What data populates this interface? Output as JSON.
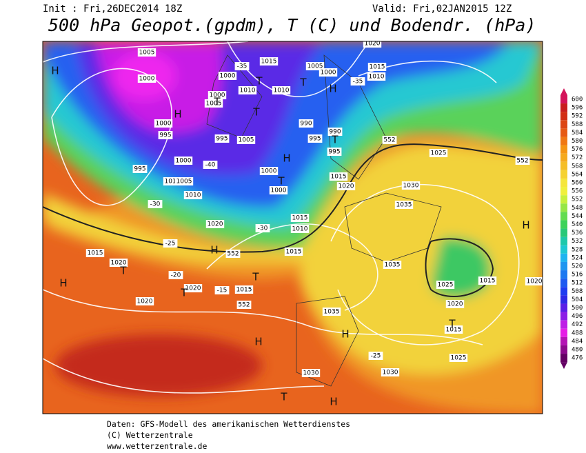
{
  "header": {
    "init": "Init : Fri,26DEC2014 18Z",
    "valid": "Valid: Fri,02JAN2015 12Z",
    "title": "500 hPa Geopot.(gpdm), T (C) und Bodendr. (hPa)"
  },
  "legend": {
    "labels": [
      600,
      596,
      592,
      588,
      584,
      580,
      576,
      572,
      568,
      564,
      560,
      556,
      552,
      548,
      544,
      540,
      536,
      532,
      528,
      524,
      520,
      516,
      512,
      508,
      504,
      500,
      496,
      492,
      488,
      484,
      480,
      476
    ]
  },
  "map": {
    "labels": [
      "1005",
      "1000",
      "1000",
      "995",
      "995",
      "1000",
      "1005",
      "1010",
      "1000",
      "1010",
      "1015",
      "1005",
      "1000",
      "1010",
      "990",
      "995",
      "990",
      "995",
      "1005",
      "995",
      "1000",
      "1000",
      "1005",
      "1010",
      "1020",
      "1015",
      "1020",
      "1015",
      "1010",
      "1015",
      "1020",
      "1025",
      "1030",
      "1035",
      "1035",
      "1025",
      "1020",
      "1015",
      "1020",
      "1015",
      "1035",
      "1030",
      "1030",
      "1025",
      "1015",
      "1020",
      "1020",
      "1020",
      "1015",
      "1015",
      "1010",
      "1000",
      "-35",
      "-40",
      "-30",
      "-25",
      "-20",
      "-15",
      "-25",
      "-30",
      "-35",
      "552",
      "552",
      "552",
      "552",
      "H",
      "H",
      "H",
      "H",
      "H",
      "H",
      "H",
      "H",
      "H",
      "H",
      "T",
      "T",
      "T",
      "T",
      "T",
      "T",
      "T",
      "T",
      "T",
      "T",
      "T"
    ]
  },
  "footer": {
    "lines": [
      "Daten: GFS-Modell des amerikanischen Wetterdienstes",
      "(C) Wetterzentrale",
      "www.wetterzentrale.de"
    ]
  }
}
